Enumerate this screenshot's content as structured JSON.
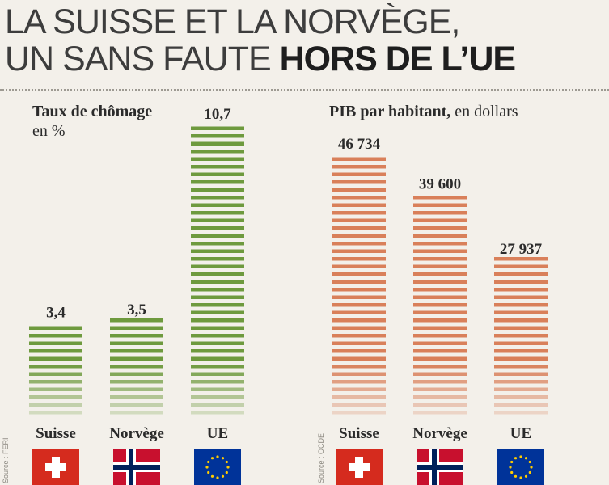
{
  "headline": {
    "line1": "LA SUISSE ET LA NORVÈGE,",
    "line2_regular": "UN SANS FAUTE ",
    "line2_bold": "HORS DE L’UE"
  },
  "panels": [
    {
      "label_bold": "Taux de chômage",
      "label_unit": "en %",
      "source": "Source : FERI"
    },
    {
      "label_bold": "PIB par habitant,",
      "label_unit": "en dollars",
      "source": "Source : OCDE"
    }
  ],
  "chart_data": [
    {
      "type": "bar",
      "title": "Taux de chômage en %",
      "categories": [
        "Suisse",
        "Norvège",
        "UE"
      ],
      "values": [
        3.4,
        3.5,
        10.7
      ],
      "value_labels": [
        "3,4",
        "3,5",
        "10,7"
      ],
      "color": "#6e9a3e",
      "ylim": [
        0,
        10.7
      ]
    },
    {
      "type": "bar",
      "title": "PIB par habitant, en dollars",
      "categories": [
        "Suisse",
        "Norvège",
        "UE"
      ],
      "values": [
        46734,
        39600,
        27937
      ],
      "value_labels": [
        "46 734",
        "39 600",
        "27 937"
      ],
      "color": "#d9805a",
      "ylim": [
        0,
        46734
      ]
    }
  ],
  "flags": [
    "swiss-flag",
    "norwegian-flag",
    "eu-flag"
  ],
  "colors": {
    "swiss_red": "#d52b1e",
    "norway_red": "#c8102e",
    "norway_blue": "#00205b",
    "eu_blue": "#003399",
    "eu_star": "#ffcc00"
  }
}
